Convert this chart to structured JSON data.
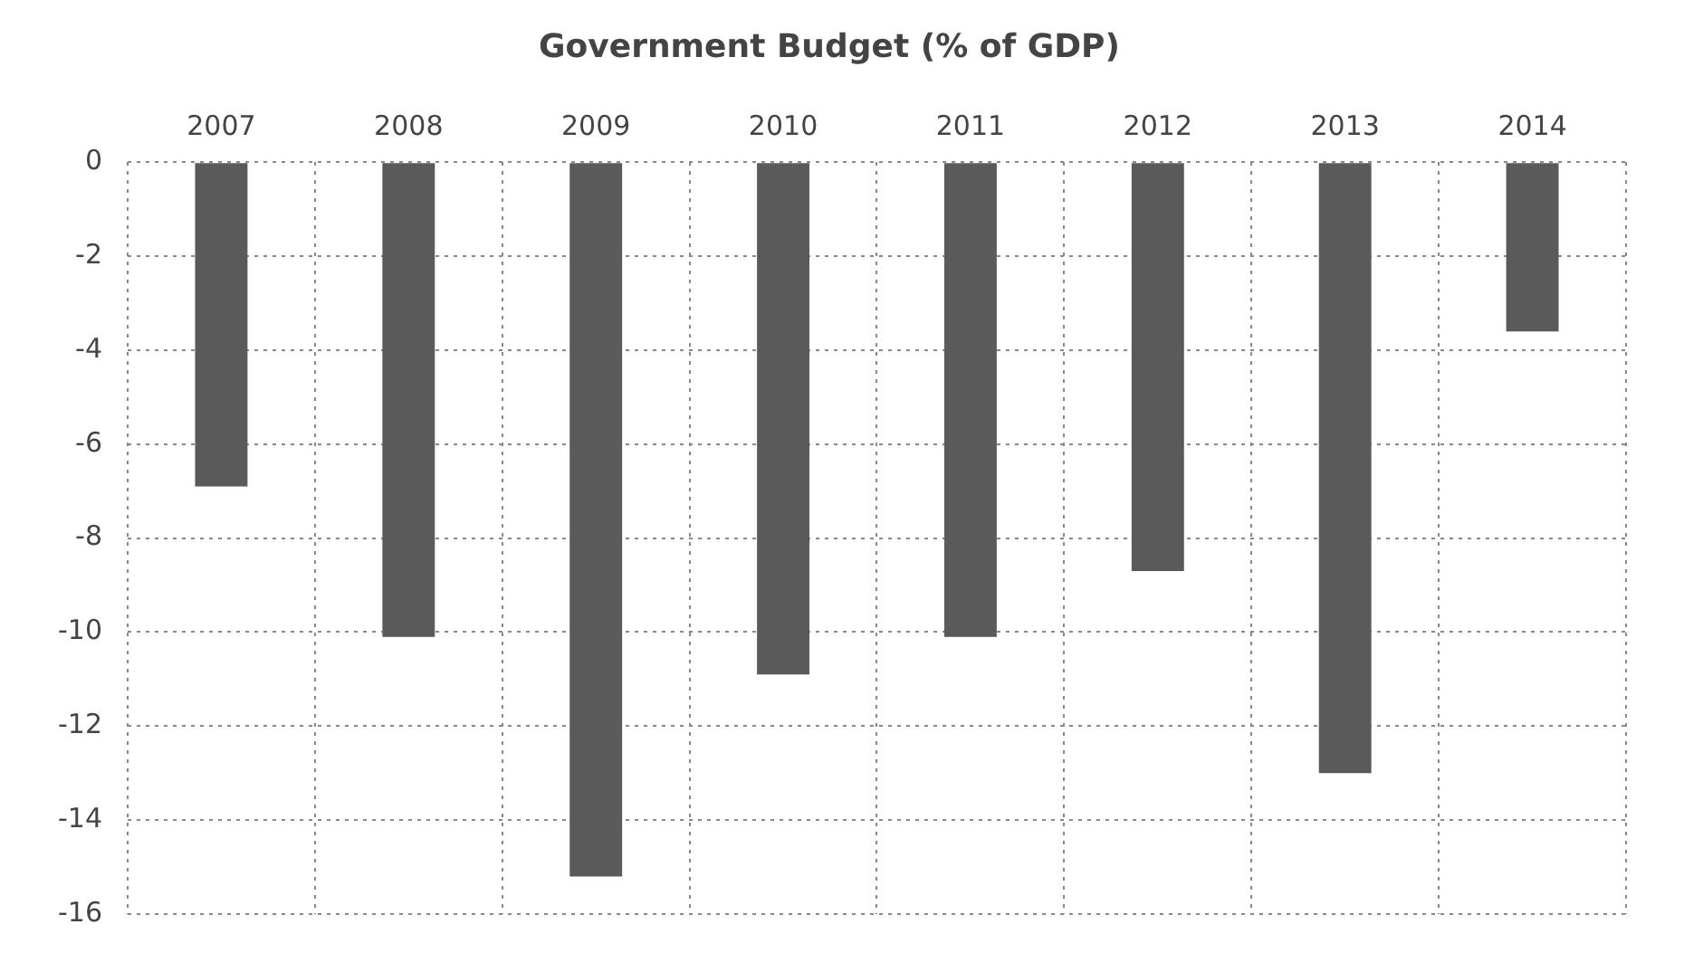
{
  "chart_data": {
    "type": "bar",
    "title": "Government Budget (% of GDP)",
    "categories": [
      "2007",
      "2008",
      "2009",
      "2010",
      "2011",
      "2012",
      "2013",
      "2014"
    ],
    "values": [
      -6.9,
      -10.1,
      -15.2,
      -10.9,
      -10.1,
      -8.7,
      -13.0,
      -3.6
    ],
    "color": "#5a5a5a",
    "ylim": [
      -16,
      0
    ],
    "yticks": [
      0,
      -2,
      -4,
      -6,
      -8,
      -10,
      -12,
      -14,
      -16
    ],
    "grid": true,
    "line_style": "dotted"
  }
}
